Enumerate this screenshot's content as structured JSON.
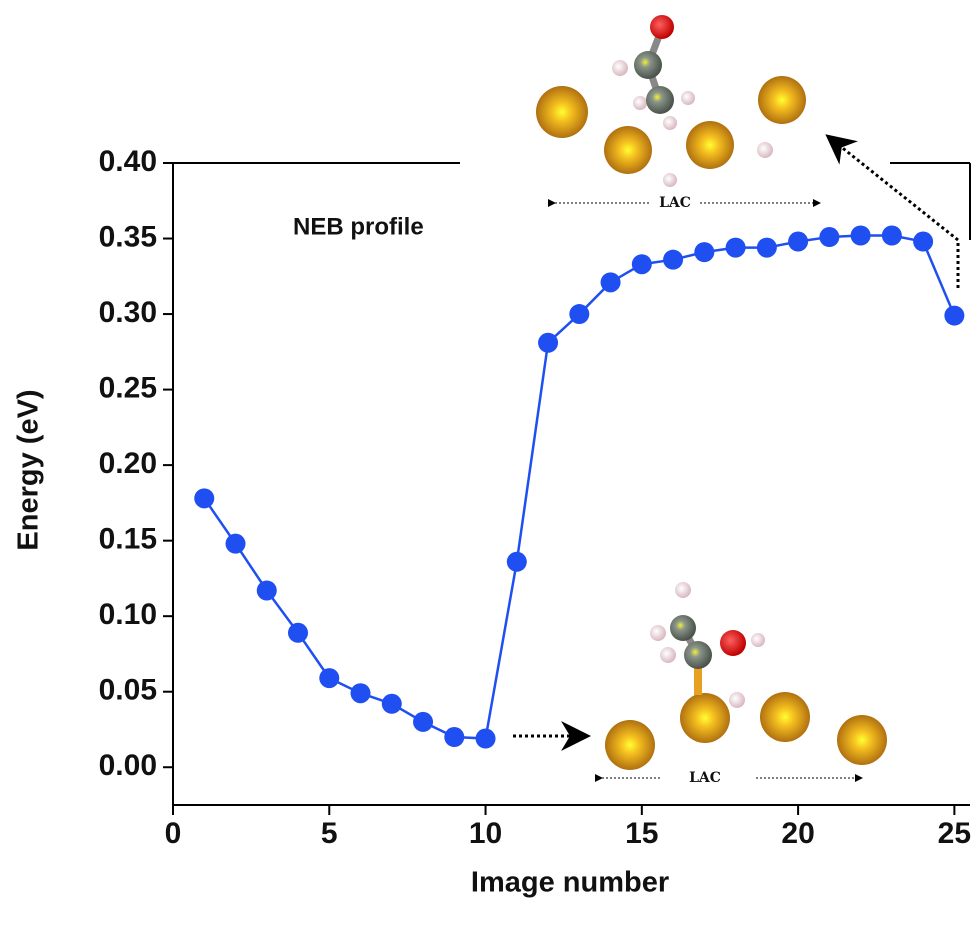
{
  "chart_data": {
    "type": "line",
    "x_label": "Image number",
    "y_label": "Energy (eV)",
    "annotation": "NEB profile",
    "inset_labels": [
      "LAC",
      "LAC"
    ],
    "xlim": [
      0,
      25.5
    ],
    "ylim": [
      -0.025,
      0.4
    ],
    "xticks": [
      0,
      5,
      10,
      15,
      20,
      25
    ],
    "yticks": [
      {
        "value": 0.0,
        "label": "0.00"
      },
      {
        "value": 0.05,
        "label": "0.05"
      },
      {
        "value": 0.1,
        "label": "0.10"
      },
      {
        "value": 0.15,
        "label": "0.15"
      },
      {
        "value": 0.2,
        "label": "0.20"
      },
      {
        "value": 0.25,
        "label": "0.25"
      },
      {
        "value": 0.3,
        "label": "0.30"
      },
      {
        "value": 0.35,
        "label": "0.35"
      },
      {
        "value": 0.4,
        "label": "0.40"
      }
    ],
    "series": [
      {
        "color": "#1f4ff0",
        "x": [
          1,
          2,
          3,
          4,
          5,
          6,
          7,
          8,
          9,
          10,
          11,
          12,
          13,
          14,
          15,
          16,
          17,
          18,
          19,
          20,
          21,
          22,
          23,
          24,
          25
        ],
        "values": [
          0.178,
          0.148,
          0.117,
          0.089,
          0.059,
          0.049,
          0.042,
          0.03,
          0.02,
          0.019,
          0.136,
          0.281,
          0.3,
          0.321,
          0.333,
          0.336,
          0.341,
          0.344,
          0.344,
          0.348,
          0.351,
          0.352,
          0.352,
          0.348,
          0.299
        ]
      }
    ]
  }
}
